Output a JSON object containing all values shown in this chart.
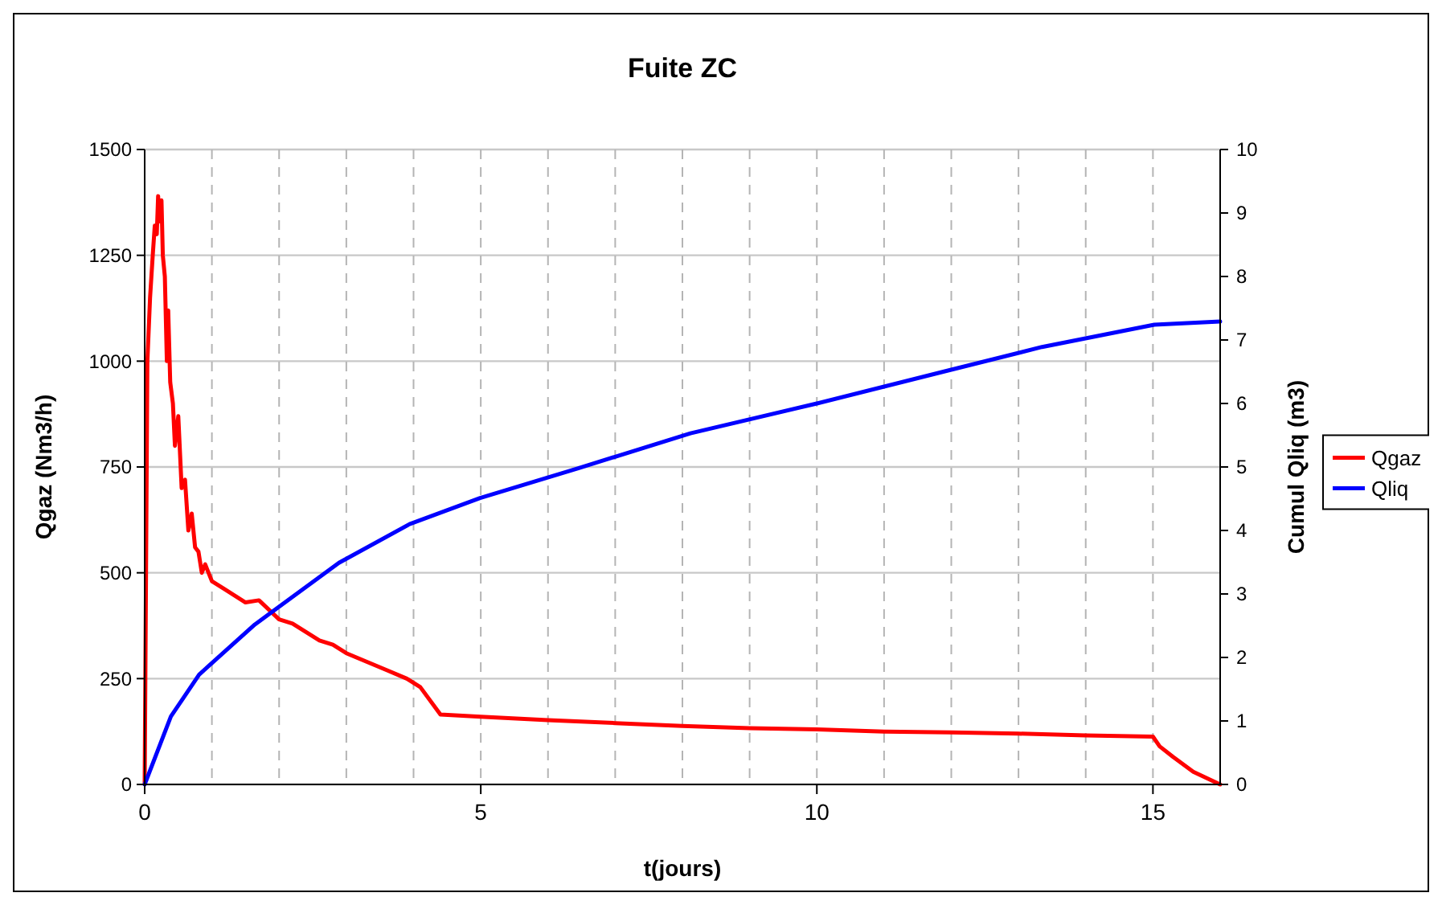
{
  "chart_data": {
    "type": "line",
    "title": "Fuite ZC",
    "xlabel": "t(jours)",
    "ylabel": "Qgaz (Nm3/h)",
    "y2label": "Cumul Qliq (m3)",
    "xlim": [
      0,
      16
    ],
    "xticks": [
      0,
      {
        "value": 1,
        "label": null
      },
      {
        "value": 2,
        "label": null
      },
      {
        "value": 3,
        "label": null
      },
      {
        "value": 4,
        "label": null
      },
      5,
      {
        "value": 6,
        "label": null
      },
      {
        "value": 7,
        "label": null
      },
      {
        "value": 8,
        "label": null
      },
      {
        "value": 9,
        "label": null
      },
      10,
      {
        "value": 11,
        "label": null
      },
      {
        "value": 12,
        "label": null
      },
      {
        "value": 13,
        "label": null
      },
      {
        "value": 14,
        "label": null
      },
      15,
      {
        "value": 16,
        "label": null
      }
    ],
    "ylim": [
      0,
      1500
    ],
    "yticks": [
      0,
      250,
      500,
      750,
      1000,
      1250,
      1500
    ],
    "y2lim": [
      0,
      10
    ],
    "y2ticks": [
      0,
      1,
      2,
      3,
      4,
      5,
      6,
      7,
      8,
      9,
      10
    ],
    "grid": true,
    "legend": "right",
    "line_style": "solid",
    "series": [
      {
        "name": "Qgaz",
        "color": "#ff0000",
        "x": [
          0,
          0.02,
          0.04,
          0.08,
          0.12,
          0.15,
          0.18,
          0.2,
          0.22,
          0.25,
          0.27,
          0.3,
          0.33,
          0.35,
          0.38,
          0.42,
          0.45,
          0.5,
          0.55,
          0.6,
          0.65,
          0.7,
          0.75,
          0.8,
          0.85,
          0.9,
          1.0,
          1.2,
          1.5,
          1.7,
          2.0,
          2.2,
          2.4,
          2.6,
          2.8,
          3.0,
          3.3,
          3.6,
          3.9,
          4.1,
          4.4,
          5,
          6,
          7,
          8,
          9,
          10,
          11,
          12,
          13,
          14,
          15,
          15.1,
          15.3,
          15.6,
          16
        ],
        "values": [
          0,
          500,
          1000,
          1150,
          1250,
          1320,
          1300,
          1390,
          1330,
          1380,
          1250,
          1200,
          1000,
          1120,
          950,
          900,
          800,
          870,
          700,
          720,
          600,
          640,
          560,
          550,
          500,
          520,
          480,
          460,
          430,
          435,
          390,
          380,
          360,
          340,
          330,
          310,
          290,
          270,
          250,
          230,
          165,
          160,
          152,
          145,
          138,
          133,
          130,
          125,
          123,
          120,
          116,
          113,
          90,
          65,
          30,
          0
        ]
      },
      {
        "name": "Qliq",
        "color": "#0000ff",
        "axis": "y2",
        "x": [
          0,
          0.39,
          0.81,
          1.64,
          2.89,
          3.94,
          4.99,
          6.45,
          8.12,
          10,
          11.88,
          13.35,
          15.02,
          16
        ],
        "values": [
          0,
          1.07,
          1.73,
          2.52,
          3.49,
          4.1,
          4.51,
          4.98,
          5.53,
          6.0,
          6.5,
          6.89,
          7.24,
          7.29
        ]
      }
    ]
  }
}
